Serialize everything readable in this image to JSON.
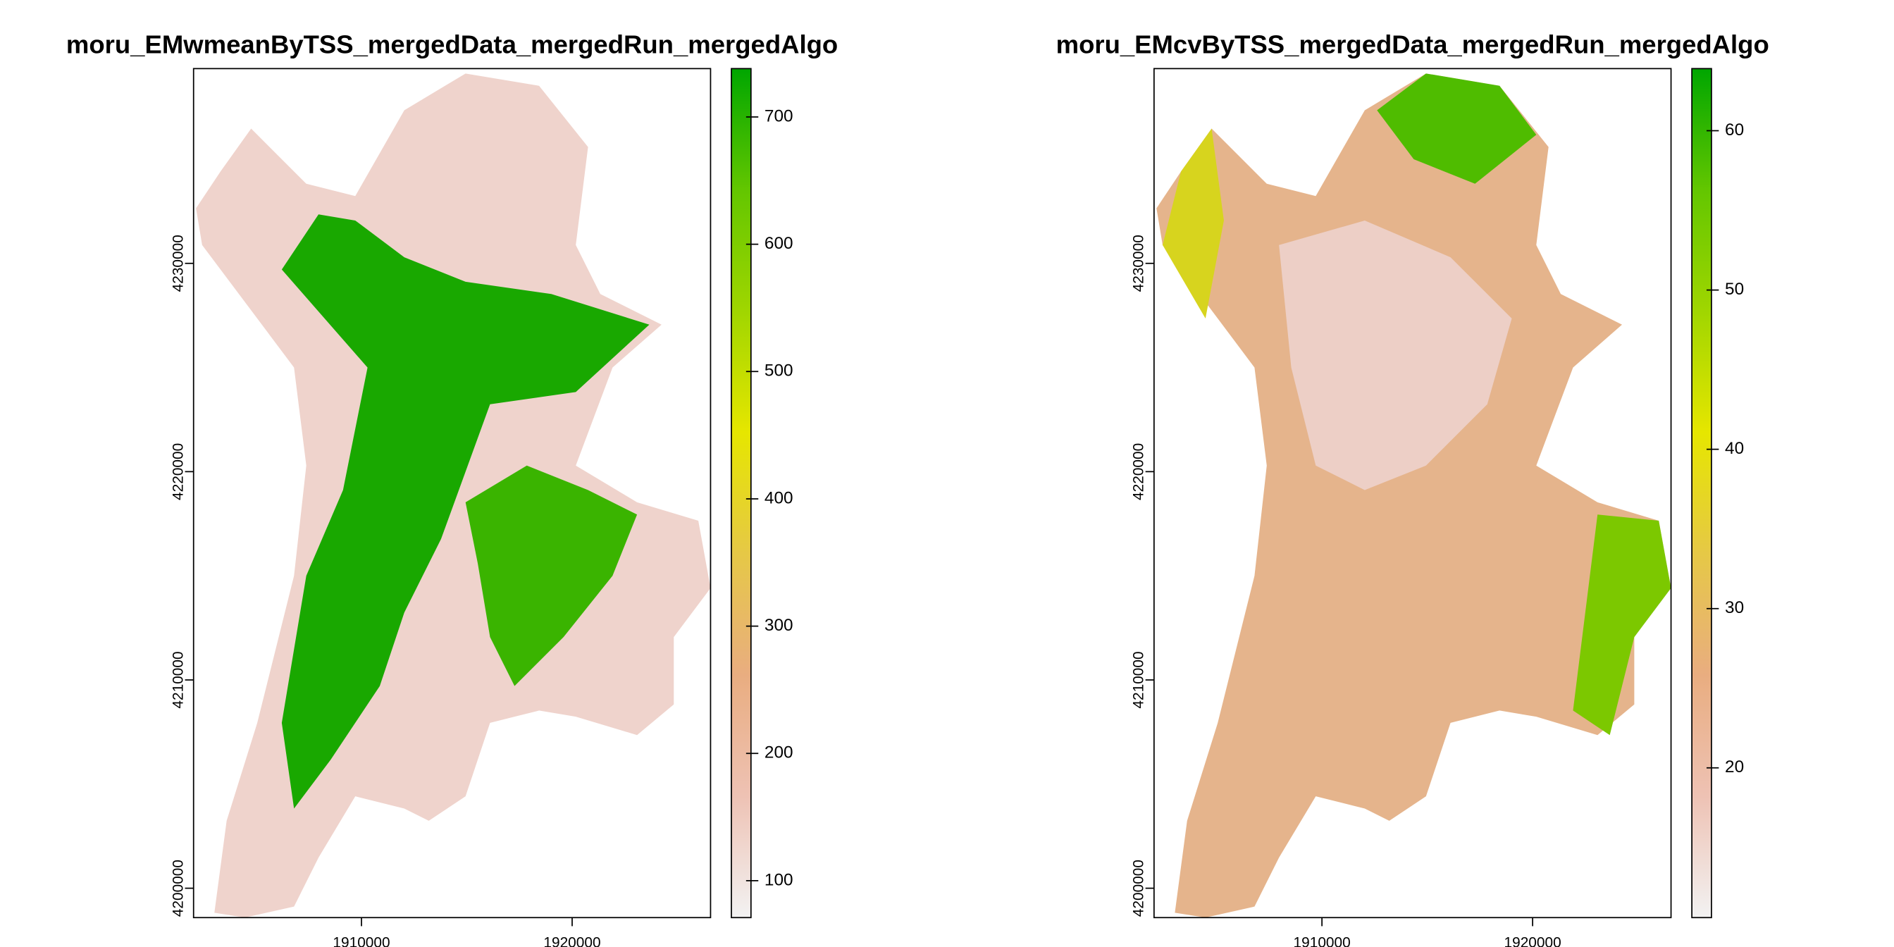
{
  "chart_data": [
    {
      "type": "raster",
      "title": "moru_EMwmeanByTSS_mergedData_mergedRun_mergedAlgo",
      "xlim": [
        1902030,
        1926570
      ],
      "xticks": [
        1910000,
        1920000
      ],
      "ylim": [
        4198590,
        4239350
      ],
      "yticks": [
        4200000,
        4210000,
        4220000,
        4230000
      ],
      "zlim": [
        71,
        738
      ],
      "zticks": [
        100,
        200,
        300,
        400,
        500,
        600,
        700
      ],
      "colors": [
        "#f2f2f2",
        "#eec2b4",
        "#e9ad80",
        "#e6c846",
        "#e6e600",
        "#a0d600",
        "#63c600",
        "#00a600"
      ]
    },
    {
      "type": "raster",
      "title": "moru_EMcvByTSS_mergedData_mergedRun_mergedAlgo",
      "xlim": [
        1902030,
        1926570
      ],
      "xticks": [
        1910000,
        1920000
      ],
      "ylim": [
        4198590,
        4239350
      ],
      "yticks": [
        4200000,
        4210000,
        4220000,
        4230000
      ],
      "zlim": [
        10.6,
        63.9
      ],
      "zticks": [
        20,
        30,
        40,
        50,
        60
      ],
      "colors": [
        "#f2f2f2",
        "#eec2b4",
        "#e9ad80",
        "#e6c846",
        "#e6e600",
        "#a0d600",
        "#63c600",
        "#00a600"
      ]
    }
  ]
}
